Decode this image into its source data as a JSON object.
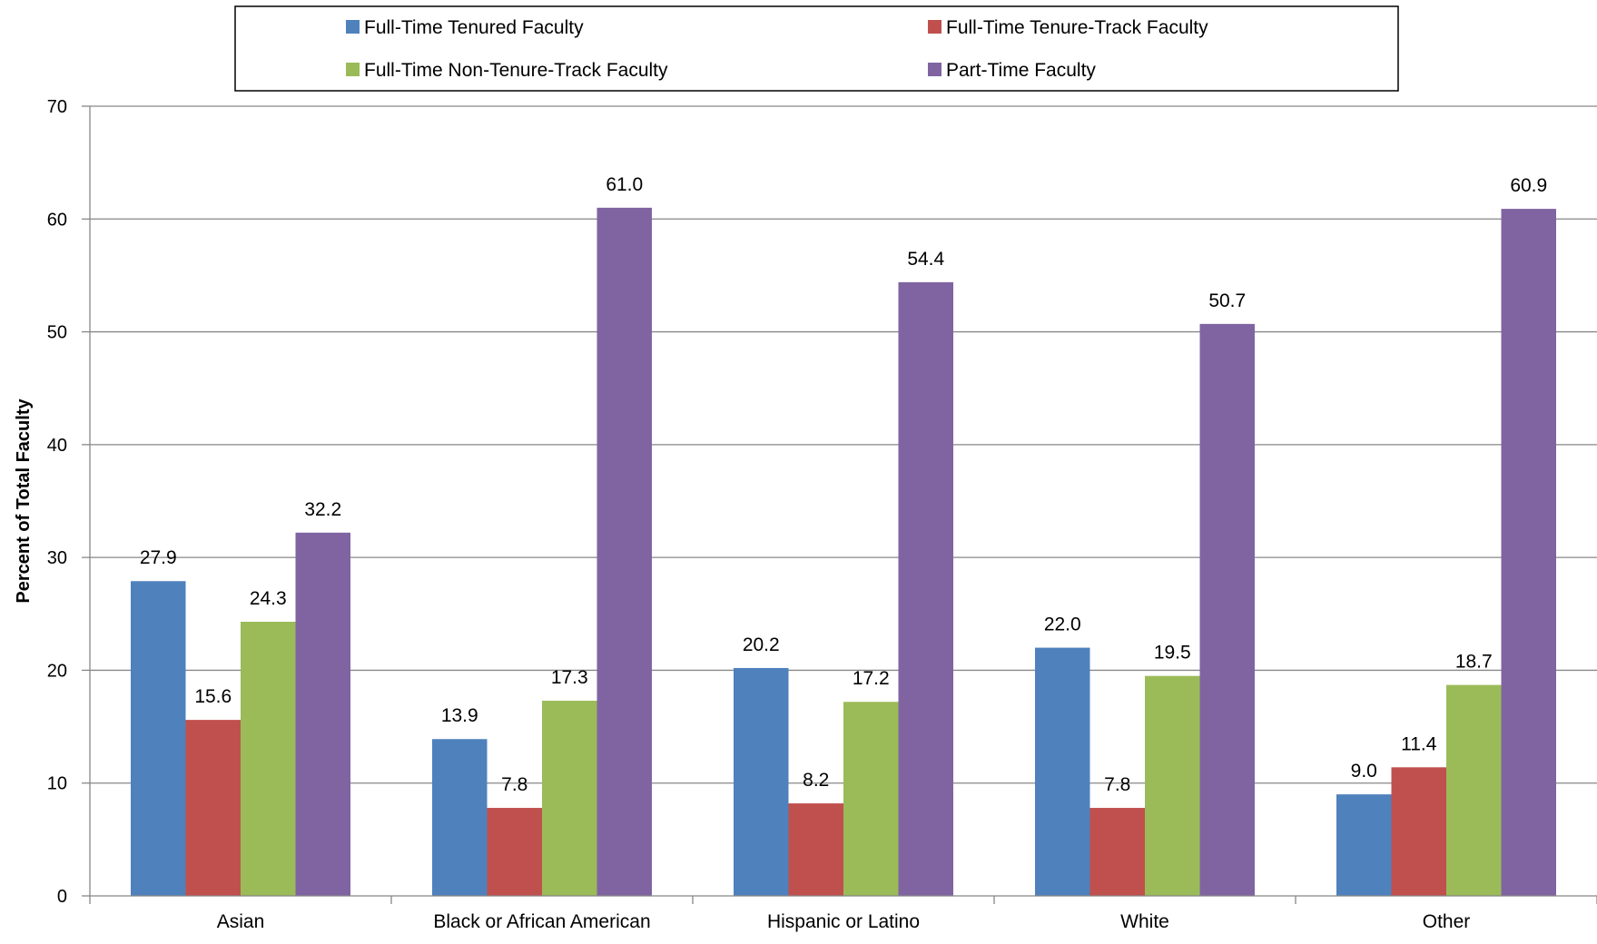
{
  "chart_data": {
    "type": "bar",
    "title": "",
    "xlabel": "",
    "ylabel": "Percent of Total Faculty",
    "ylim": [
      0,
      70
    ],
    "yticks": [
      0,
      10,
      20,
      30,
      40,
      50,
      60,
      70
    ],
    "grid": true,
    "legend_position": "top",
    "categories": [
      "Asian",
      "Black or African American",
      "Hispanic or Latino",
      "White",
      "Other"
    ],
    "series": [
      {
        "name": "Full-Time Tenured Faculty",
        "color": "#4F81BD",
        "values": [
          27.9,
          13.9,
          20.2,
          22.0,
          9.0
        ],
        "labels": [
          "27.9",
          "13.9",
          "20.2",
          "22.0",
          "9.0"
        ]
      },
      {
        "name": "Full-Time Tenure-Track Faculty",
        "color": "#C0504D",
        "values": [
          15.6,
          7.8,
          8.2,
          7.8,
          11.4
        ],
        "labels": [
          "15.6",
          "7.8",
          "8.2",
          "7.8",
          "11.4"
        ]
      },
      {
        "name": "Full-Time Non-Tenure-Track Faculty",
        "color": "#9BBB59",
        "values": [
          24.3,
          17.3,
          17.2,
          19.5,
          18.7
        ],
        "labels": [
          "24.3",
          "17.3",
          "17.2",
          "19.5",
          "18.7"
        ]
      },
      {
        "name": "Part-Time Faculty",
        "color": "#8064A2",
        "values": [
          32.2,
          61.0,
          54.4,
          50.7,
          60.9
        ],
        "labels": [
          "32.2",
          "61.0",
          "54.4",
          "50.7",
          "60.9"
        ]
      }
    ]
  }
}
